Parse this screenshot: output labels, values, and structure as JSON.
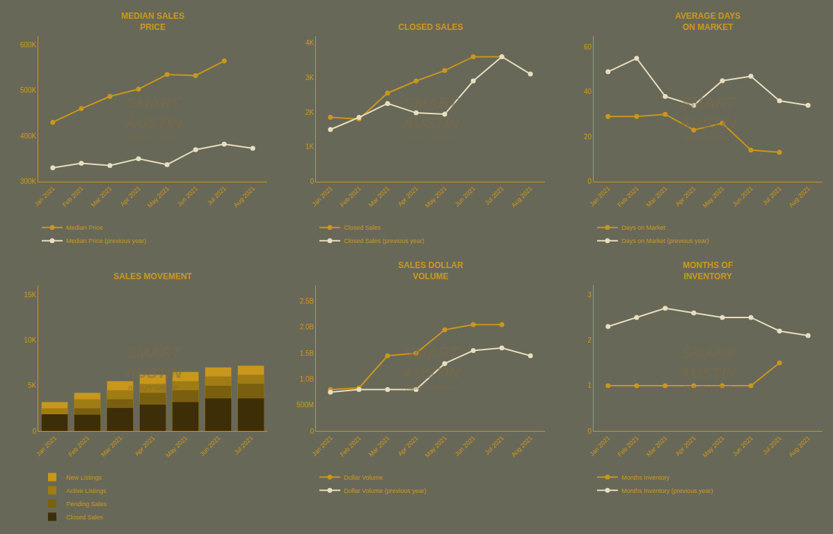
{
  "chart_data": [
    {
      "type": "line",
      "title": "MEDIAN SALES\nPRICE",
      "categories": [
        "Jan 2021",
        "Feb 2021",
        "Mar 2021",
        "Apr 2021",
        "May 2021",
        "Jun 2021",
        "Jul 2021",
        "Aug 2021"
      ],
      "series": [
        {
          "name": "Median Price",
          "color": "#c9971c",
          "marker": "circle",
          "line_style": "solid",
          "values": [
            430000,
            460000,
            487000,
            503000,
            535000,
            533000,
            565000,
            null
          ]
        },
        {
          "name": "Median Price (previous year)",
          "color": "#e8dfc0",
          "marker": "circle",
          "line_style": "solid",
          "values": [
            330000,
            340000,
            335000,
            350000,
            337000,
            370000,
            382000,
            373000
          ]
        }
      ],
      "ylim": [
        300000,
        620000
      ],
      "yticks": [
        {
          "value": 300000,
          "label": "300K"
        },
        {
          "value": 400000,
          "label": "400K"
        },
        {
          "value": 500000,
          "label": "500K"
        },
        {
          "value": 600000,
          "label": "600K"
        }
      ],
      "grid": false,
      "legend": "below",
      "annotations": [
        {
          "text": "SMART\nAUSTIN"
        },
        {
          "text": "REALTY GROUP"
        }
      ]
    },
    {
      "type": "line",
      "title": "CLOSED SALES",
      "categories": [
        "Jan 2021",
        "Feb 2021",
        "Mar 2021",
        "Apr 2021",
        "May 2021",
        "Jun 2021",
        "Jul 2021",
        "Aug 2021"
      ],
      "series": [
        {
          "name": "Closed Sales",
          "color": "#c9971c",
          "marker": "circle",
          "line_style": "solid",
          "values": [
            1850,
            1800,
            2550,
            2900,
            3200,
            3600,
            3600,
            null
          ]
        },
        {
          "name": "Closed Sales (previous year)",
          "color": "#e8dfc0",
          "marker": "circle",
          "line_style": "solid",
          "values": [
            1500,
            1850,
            2250,
            1980,
            1940,
            2900,
            3600,
            3100
          ]
        }
      ],
      "ylim": [
        0,
        4200
      ],
      "yticks": [
        0,
        {
          "value": 1000,
          "label": "1K"
        },
        {
          "value": 2000,
          "label": "2K"
        },
        {
          "value": 3000,
          "label": "3K"
        },
        {
          "value": 4000,
          "label": "4K"
        }
      ],
      "grid": false,
      "legend": "below",
      "annotations": [
        {
          "text": "SMART\nAUSTIN"
        },
        {
          "text": "REALTY GROUP"
        }
      ]
    },
    {
      "type": "line",
      "title": "AVERAGE DAYS\nON MARKET",
      "categories": [
        "Jan 2021",
        "Feb 2021",
        "Mar 2021",
        "Apr 2021",
        "May 2021",
        "Jun 2021",
        "Jul 2021",
        "Aug 2021"
      ],
      "series": [
        {
          "name": "Days on Market",
          "color": "#c9971c",
          "marker": "circle",
          "line_style": "solid",
          "values": [
            29,
            29,
            30,
            23,
            26,
            14,
            13,
            null
          ]
        },
        {
          "name": "Days on Market (previous year)",
          "color": "#e8dfc0",
          "marker": "circle",
          "line_style": "solid",
          "values": [
            49,
            55,
            38,
            34,
            45,
            47,
            36,
            34
          ]
        }
      ],
      "ylim": [
        0,
        65
      ],
      "yticks": [
        0,
        20,
        40,
        60
      ],
      "grid": false,
      "legend": "below",
      "annotations": [
        {
          "text": "SMART\nAUSTIN"
        },
        {
          "text": "REALTY GROUP"
        }
      ]
    },
    {
      "type": "bar",
      "title": "SALES MOVEMENT",
      "stacked": false,
      "categories": [
        "Jan 2021",
        "Feb 2021",
        "Mar 2021",
        "Apr 2021",
        "May 2021",
        "Jun 2021",
        "Jul 2021"
      ],
      "series": [
        {
          "name": "New Listings",
          "color": "#c9971c",
          "values": [
            3200,
            4200,
            5500,
            6200,
            6500,
            7000,
            7200
          ]
        },
        {
          "name": "Active Listings",
          "color": "#a07c14",
          "values": [
            2500,
            3500,
            4500,
            5200,
            5500,
            6000,
            6200
          ]
        },
        {
          "name": "Pending Sales",
          "color": "#7a5f10",
          "values": [
            1800,
            2500,
            3500,
            4200,
            4500,
            5000,
            5200
          ]
        },
        {
          "name": "Closed Sales",
          "color": "#3d2e08",
          "values": [
            1850,
            1800,
            2550,
            2900,
            3200,
            3600,
            3600
          ]
        }
      ],
      "ylim": [
        0,
        16000
      ],
      "yticks": [
        0,
        {
          "value": 5000,
          "label": "5K"
        },
        {
          "value": 10000,
          "label": "10K"
        },
        {
          "value": 15000,
          "label": "15K"
        }
      ],
      "grid": false,
      "legend": "below",
      "annotations": [
        {
          "text": "SMART\nAUSTIN"
        },
        {
          "text": "REALTY GROUP"
        }
      ]
    },
    {
      "type": "line",
      "title": "SALES DOLLAR\nVOLUME",
      "categories": [
        "Jan 2021",
        "Feb 2021",
        "Mar 2021",
        "Apr 2021",
        "May 2021",
        "Jun 2021",
        "Jul 2021",
        "Aug 2021"
      ],
      "series": [
        {
          "name": "Dollar Volume",
          "color": "#c9971c",
          "marker": "circle",
          "line_style": "solid",
          "values": [
            800000000,
            830000000,
            1450000000,
            1500000000,
            1950000000,
            2050000000,
            2050000000,
            null
          ]
        },
        {
          "name": "Dollar Volume (previous year)",
          "color": "#e8dfc0",
          "marker": "circle",
          "line_style": "solid",
          "values": [
            750000000,
            800000000,
            800000000,
            800000000,
            1300000000,
            1550000000,
            1600000000,
            1450000000
          ]
        }
      ],
      "ylim": [
        0,
        2800000000
      ],
      "yticks": [
        0,
        {
          "value": 500000000,
          "label": "500M"
        },
        {
          "value": 1000000000,
          "label": "1.0B"
        },
        {
          "value": 1500000000,
          "label": "1.5B"
        },
        {
          "value": 2000000000,
          "label": "2.0B"
        },
        {
          "value": 2500000000,
          "label": "2.5B"
        }
      ],
      "grid": false,
      "legend": "below",
      "annotations": [
        {
          "text": "SMART\nAUSTIN"
        },
        {
          "text": "REALTY GROUP"
        }
      ]
    },
    {
      "type": "line",
      "title": "MONTHS OF\nINVENTORY",
      "categories": [
        "Jan 2021",
        "Feb 2021",
        "Mar 2021",
        "Apr 2021",
        "May 2021",
        "Jun 2021",
        "Jul 2021",
        "Aug 2021"
      ],
      "series": [
        {
          "name": "Months Inventory",
          "color": "#c9971c",
          "marker": "circle",
          "line_style": "solid",
          "values": [
            1.0,
            1.0,
            1.0,
            1.0,
            1.0,
            1.0,
            1.5,
            null
          ]
        },
        {
          "name": "Months Inventory (previous year)",
          "color": "#e8dfc0",
          "marker": "circle",
          "line_style": "solid",
          "values": [
            2.3,
            2.5,
            2.7,
            2.6,
            2.5,
            2.5,
            2.2,
            2.1
          ]
        }
      ],
      "ylim": [
        0,
        3.2
      ],
      "yticks": [
        0,
        1,
        2,
        3
      ],
      "grid": false,
      "legend": "below",
      "annotations": [
        {
          "text": "SMART\nAUSTIN"
        },
        {
          "text": "REALTY GROUP"
        }
      ]
    }
  ]
}
